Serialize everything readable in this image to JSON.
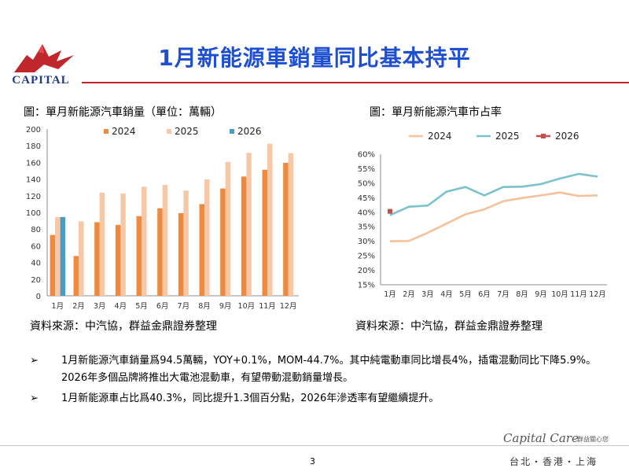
{
  "header": {
    "logo_text": "CAPITAL",
    "title": "1月新能源車銷量同比基本持平"
  },
  "left_chart": {
    "caption": "圖：單月新能源汽車銷量（單位：萬輛）",
    "source": "資料來源：中汽協，群益金鼎證券整理"
  },
  "right_chart": {
    "caption": "圖：單月新能源汽車市占率",
    "source": "資料來源：中汽協，群益金鼎證券整理"
  },
  "chart_data": [
    {
      "type": "bar",
      "title": "單月新能源汽車銷量（單位：萬輛）",
      "categories": [
        "1月",
        "2月",
        "3月",
        "4月",
        "5月",
        "6月",
        "7月",
        "8月",
        "9月",
        "10月",
        "11月",
        "12月"
      ],
      "series": [
        {
          "name": "2024",
          "color": "#ed8a3f",
          "values": [
            72.9,
            47.7,
            88.3,
            85.0,
            95.5,
            104.9,
            99.1,
            110.0,
            128.7,
            143.0,
            151.2,
            159.5
          ]
        },
        {
          "name": "2025",
          "color": "#f7c7a8",
          "values": [
            94.4,
            89.2,
            123.7,
            122.6,
            130.7,
            132.9,
            126.2,
            139.5,
            160.4,
            171.5,
            182.3,
            171.0
          ]
        },
        {
          "name": "2026",
          "color": "#4b9cc3",
          "values": [
            94.5,
            null,
            null,
            null,
            null,
            null,
            null,
            null,
            null,
            null,
            null,
            null
          ]
        }
      ],
      "ylim": [
        0,
        200
      ],
      "yticks": [
        "0",
        "20",
        "40",
        "60",
        "80",
        "100",
        "120",
        "140",
        "160",
        "180",
        "200"
      ],
      "legend": "top",
      "xlabel": "",
      "ylabel": ""
    },
    {
      "type": "line",
      "title": "單月新能源汽車市占率",
      "categories": [
        "1月",
        "2月",
        "3月",
        "4月",
        "5月",
        "6月",
        "7月",
        "8月",
        "9月",
        "10月",
        "11月",
        "12月"
      ],
      "series": [
        {
          "name": "2024",
          "color": "#f5c09a",
          "values": [
            30.0,
            30.1,
            32.9,
            36.1,
            39.3,
            41.0,
            43.8,
            44.9,
            45.8,
            46.8,
            45.6,
            45.8
          ]
        },
        {
          "name": "2025",
          "color": "#7bc2cc",
          "values": [
            39.0,
            41.9,
            42.3,
            47.1,
            48.7,
            45.8,
            48.7,
            48.8,
            49.7,
            51.6,
            53.2,
            52.3
          ]
        },
        {
          "name": "2026",
          "color": "#c0504d",
          "values": [
            40.3,
            null,
            null,
            null,
            null,
            null,
            null,
            null,
            null,
            null,
            null,
            null
          ]
        }
      ],
      "ylim": [
        15,
        60
      ],
      "yticks": [
        "15%",
        "20%",
        "25%",
        "30%",
        "35%",
        "40%",
        "45%",
        "50%",
        "55%",
        "60%"
      ],
      "legend": "top",
      "xlabel": "",
      "ylabel": ""
    }
  ],
  "bullets": [
    {
      "mark": "➢",
      "text": "1月新能源汽車銷量爲94.5萬輛，YOY+0.1%，MOM-44.7%。其中純電動車同比增長4%，插電混動同比下降5.9%。2026年多個品牌將推出大電池混動車，有望帶動混動銷量增長。"
    },
    {
      "mark": "➢",
      "text": "1月新能源車占比爲40.3%，同比提升1.3個百分點，2026年滲透率有望繼續提升。"
    }
  ],
  "footer": {
    "page_number": "3",
    "brand": "Capital Care",
    "brand_sub": "群益關心您",
    "cities": "台北・香港・上海"
  },
  "colors": {
    "title_blue": "#1f4fd1",
    "rule_red": "#c0272d",
    "logo_red": "#c0272d",
    "logo_blue": "#1e3a8a"
  }
}
